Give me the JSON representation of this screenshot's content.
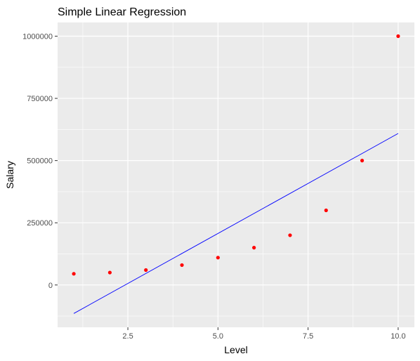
{
  "chart_data": {
    "type": "scatter",
    "title": "Simple Linear Regression",
    "xlabel": "Level",
    "ylabel": "Salary",
    "xlim": [
      0.55,
      10.45
    ],
    "ylim": [
      -170000,
      1055000
    ],
    "x_ticks": [
      2.5,
      5.0,
      7.5,
      10.0
    ],
    "x_tick_labels": [
      "2.5",
      "5.0",
      "7.5",
      "10.0"
    ],
    "y_ticks": [
      0,
      250000,
      500000,
      750000,
      1000000
    ],
    "y_tick_labels": [
      "0",
      "250000",
      "500000",
      "750000",
      "1000000"
    ],
    "grid": true,
    "series": [
      {
        "type": "scatter",
        "color": "#ff0000",
        "x": [
          1,
          2,
          3,
          4,
          5,
          6,
          7,
          8,
          9,
          10
        ],
        "y": [
          45000,
          50000,
          60000,
          80000,
          110000,
          150000,
          200000,
          300000,
          500000,
          1000000
        ]
      },
      {
        "type": "line",
        "color": "#0000ff",
        "x": [
          1,
          10
        ],
        "y": [
          -114455,
          609000
        ]
      }
    ]
  }
}
